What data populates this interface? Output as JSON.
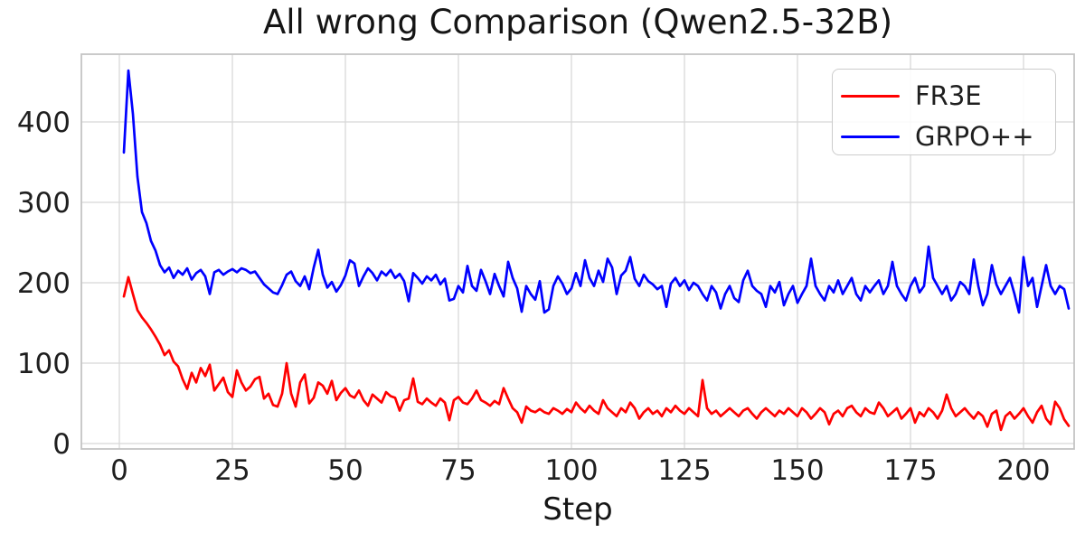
{
  "figure": {
    "title": "All wrong Comparison (Qwen2.5-32B)",
    "xlabel": "Step"
  },
  "chart_data": {
    "type": "line",
    "title": "All wrong Comparison (Qwen2.5-32B)",
    "xlabel": "Step",
    "ylabel": "",
    "grid": true,
    "legend_position": "upper right",
    "xlim": [
      -8.4,
      211.2
    ],
    "ylim": [
      -6.7,
      484.3
    ],
    "xticks": [
      0,
      25,
      50,
      75,
      100,
      125,
      150,
      175,
      200
    ],
    "yticks": [
      0,
      100,
      200,
      300,
      400
    ],
    "x_start": 1,
    "x_step": 1,
    "series": [
      {
        "name": "FR3E",
        "color": "#ff0000",
        "values": [
          183,
          207,
          186,
          166,
          157,
          150,
          142,
          133,
          123,
          110,
          116,
          102,
          96,
          80,
          68,
          88,
          76,
          94,
          84,
          98,
          66,
          74,
          82,
          64,
          58,
          91,
          76,
          66,
          71,
          80,
          83,
          56,
          62,
          48,
          46,
          62,
          100,
          62,
          46,
          76,
          86,
          50,
          57,
          76,
          72,
          62,
          78,
          54,
          63,
          69,
          60,
          57,
          66,
          54,
          47,
          61,
          56,
          51,
          64,
          59,
          57,
          41,
          54,
          56,
          81,
          52,
          49,
          56,
          51,
          47,
          56,
          51,
          29,
          54,
          58,
          51,
          49,
          56,
          66,
          54,
          51,
          47,
          53,
          49,
          69,
          56,
          44,
          39,
          26,
          46,
          41,
          39,
          43,
          39,
          37,
          44,
          41,
          37,
          43,
          39,
          51,
          44,
          39,
          47,
          41,
          37,
          54,
          44,
          39,
          34,
          44,
          39,
          51,
          44,
          31,
          39,
          44,
          37,
          41,
          34,
          44,
          39,
          47,
          41,
          37,
          44,
          39,
          34,
          79,
          44,
          37,
          41,
          34,
          39,
          44,
          39,
          34,
          41,
          44,
          37,
          31,
          39,
          44,
          39,
          34,
          41,
          37,
          44,
          39,
          34,
          44,
          39,
          31,
          37,
          44,
          39,
          24,
          37,
          41,
          34,
          44,
          47,
          39,
          34,
          44,
          39,
          37,
          51,
          44,
          34,
          39,
          44,
          31,
          37,
          44,
          26,
          39,
          34,
          44,
          39,
          31,
          41,
          61,
          44,
          34,
          39,
          44,
          37,
          31,
          39,
          34,
          21,
          37,
          41,
          17,
          34,
          39,
          31,
          37,
          44,
          34,
          26,
          39,
          47,
          31,
          24,
          52,
          44,
          30,
          22
        ]
      },
      {
        "name": "GRPO++",
        "color": "#0000ff",
        "values": [
          362,
          464,
          410,
          332,
          288,
          274,
          252,
          240,
          222,
          213,
          219,
          206,
          215,
          210,
          218,
          204,
          212,
          216,
          208,
          186,
          213,
          216,
          210,
          214,
          217,
          213,
          218,
          216,
          212,
          214,
          206,
          198,
          193,
          188,
          186,
          197,
          210,
          214,
          202,
          196,
          208,
          192,
          219,
          241,
          210,
          194,
          201,
          189,
          197,
          209,
          228,
          224,
          196,
          208,
          218,
          212,
          203,
          214,
          209,
          216,
          206,
          211,
          202,
          177,
          212,
          206,
          199,
          208,
          203,
          210,
          198,
          205,
          178,
          180,
          196,
          188,
          221,
          196,
          190,
          216,
          202,
          186,
          211,
          196,
          183,
          226,
          206,
          193,
          164,
          196,
          186,
          179,
          202,
          163,
          167,
          196,
          208,
          199,
          186,
          193,
          212,
          196,
          228,
          206,
          196,
          215,
          201,
          230,
          219,
          186,
          209,
          215,
          232,
          205,
          196,
          210,
          202,
          198,
          192,
          196,
          170,
          199,
          206,
          196,
          203,
          191,
          200,
          196,
          186,
          178,
          196,
          188,
          168,
          186,
          196,
          181,
          176,
          203,
          215,
          196,
          190,
          186,
          170,
          196,
          188,
          201,
          172,
          186,
          196,
          175,
          186,
          196,
          230,
          196,
          186,
          178,
          196,
          188,
          203,
          186,
          196,
          206,
          186,
          178,
          196,
          188,
          196,
          203,
          186,
          196,
          226,
          196,
          186,
          178,
          196,
          206,
          188,
          196,
          245,
          206,
          196,
          186,
          196,
          178,
          186,
          201,
          196,
          186,
          229,
          196,
          172,
          186,
          222,
          198,
          186,
          196,
          206,
          186,
          163,
          232,
          196,
          206,
          170,
          196,
          222,
          196,
          186,
          196,
          192,
          168
        ]
      }
    ]
  }
}
